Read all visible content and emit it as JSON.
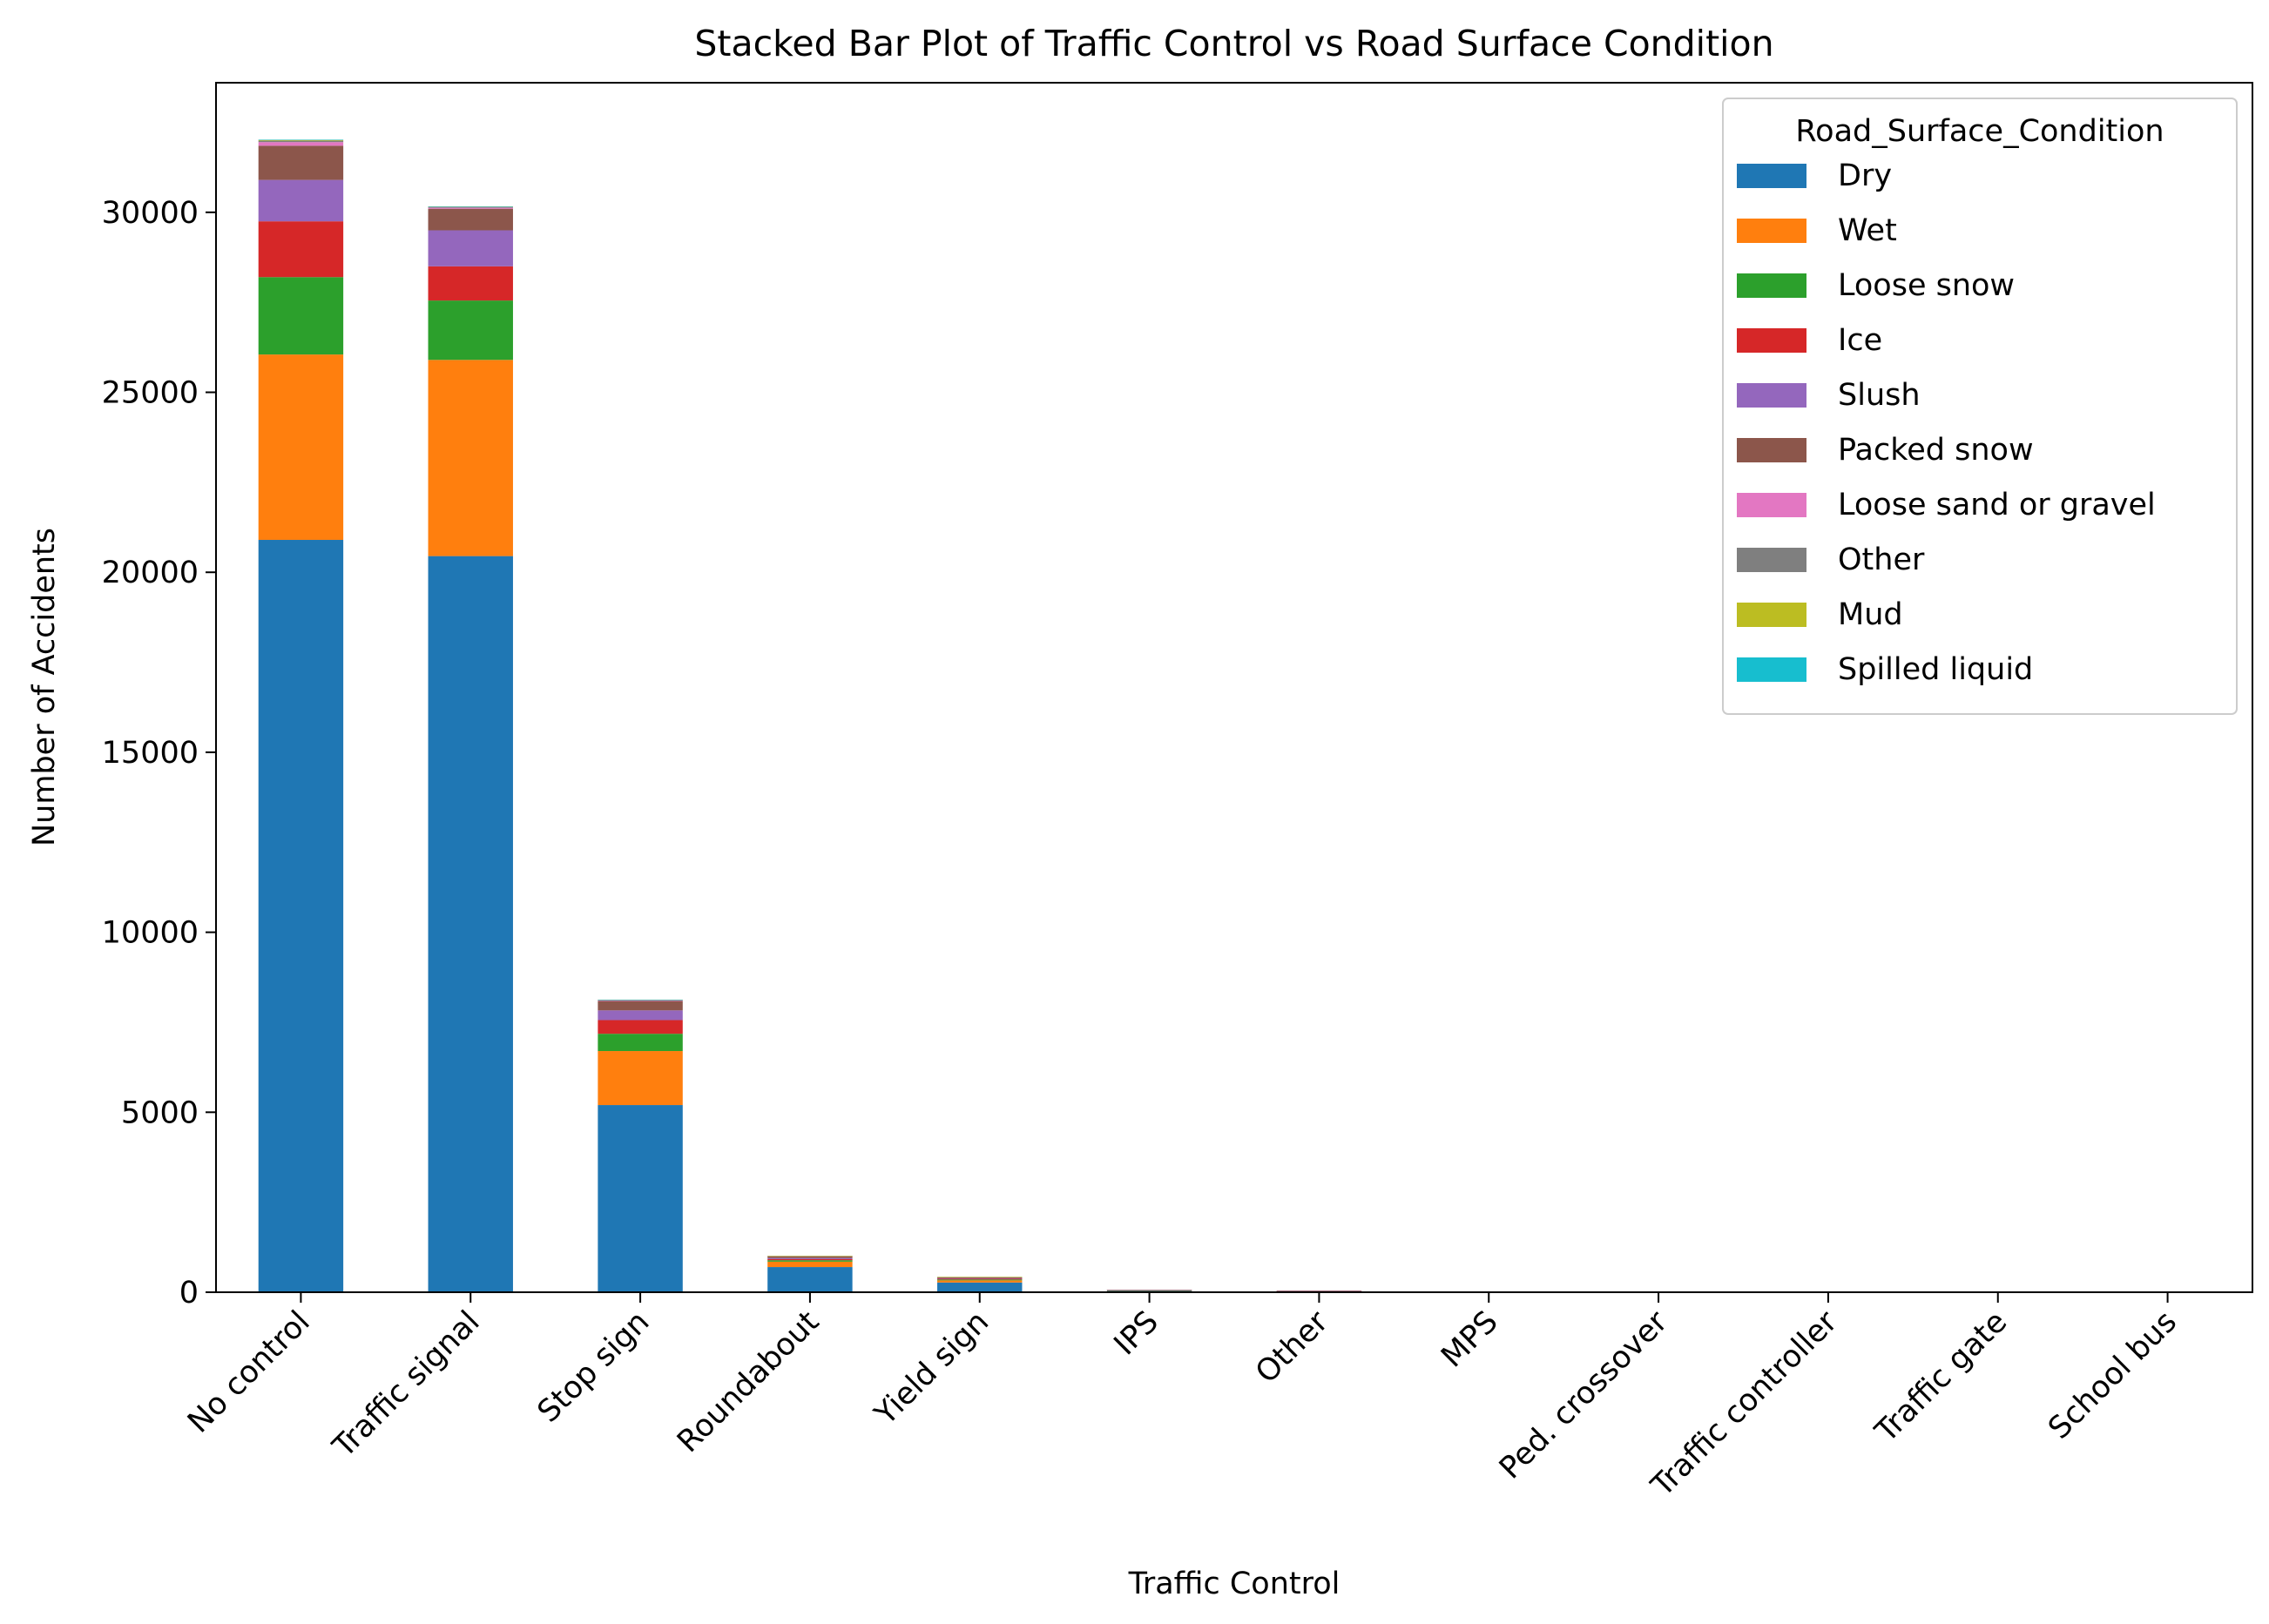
{
  "chart_data": {
    "type": "bar",
    "stacked": true,
    "title": "Stacked Bar Plot of Traffic Control vs Road Surface Condition",
    "xlabel": "Traffic Control",
    "ylabel": "Number of Accidents",
    "ylim": [
      0,
      33600
    ],
    "yticks": [
      0,
      5000,
      10000,
      15000,
      20000,
      25000,
      30000
    ],
    "legend_title": "Road_Surface_Condition",
    "legend_position": "top-right",
    "categories": [
      "No control",
      "Traffic signal",
      "Stop sign",
      "Roundabout",
      "Yield sign",
      "IPS",
      "Other",
      "MPS",
      "Ped. crossover",
      "Traffic controller",
      "Traffic gate",
      "School bus"
    ],
    "series": [
      {
        "name": "Dry",
        "color": "#1f77b4",
        "values": [
          20900,
          20450,
          5200,
          700,
          270,
          40,
          25,
          15,
          10,
          6,
          4,
          2
        ]
      },
      {
        "name": "Wet",
        "color": "#ff7f0e",
        "values": [
          5150,
          5450,
          1500,
          150,
          60,
          10,
          8,
          4,
          3,
          2,
          1,
          1
        ]
      },
      {
        "name": "Loose snow",
        "color": "#2ca02c",
        "values": [
          2150,
          1650,
          480,
          40,
          25,
          5,
          3,
          2,
          1,
          1,
          0,
          0
        ]
      },
      {
        "name": "Ice",
        "color": "#d62728",
        "values": [
          1550,
          950,
          380,
          30,
          20,
          4,
          2,
          1,
          1,
          0,
          0,
          0
        ]
      },
      {
        "name": "Slush",
        "color": "#9467bd",
        "values": [
          1150,
          1000,
          270,
          30,
          15,
          3,
          2,
          1,
          0,
          0,
          0,
          0
        ]
      },
      {
        "name": "Packed snow",
        "color": "#8c564b",
        "values": [
          950,
          600,
          260,
          50,
          30,
          3,
          2,
          1,
          0,
          0,
          0,
          0
        ]
      },
      {
        "name": "Loose sand or gravel",
        "color": "#e377c2",
        "values": [
          100,
          30,
          20,
          5,
          3,
          0,
          0,
          0,
          0,
          0,
          0,
          0
        ]
      },
      {
        "name": "Other",
        "color": "#7f7f7f",
        "values": [
          40,
          20,
          10,
          2,
          2,
          0,
          0,
          0,
          0,
          0,
          0,
          0
        ]
      },
      {
        "name": "Mud",
        "color": "#bcbd22",
        "values": [
          20,
          10,
          5,
          1,
          1,
          0,
          0,
          0,
          0,
          0,
          0,
          0
        ]
      },
      {
        "name": "Spilled liquid",
        "color": "#17becf",
        "values": [
          10,
          5,
          2,
          0,
          0,
          0,
          0,
          0,
          0,
          0,
          0,
          0
        ]
      }
    ]
  }
}
